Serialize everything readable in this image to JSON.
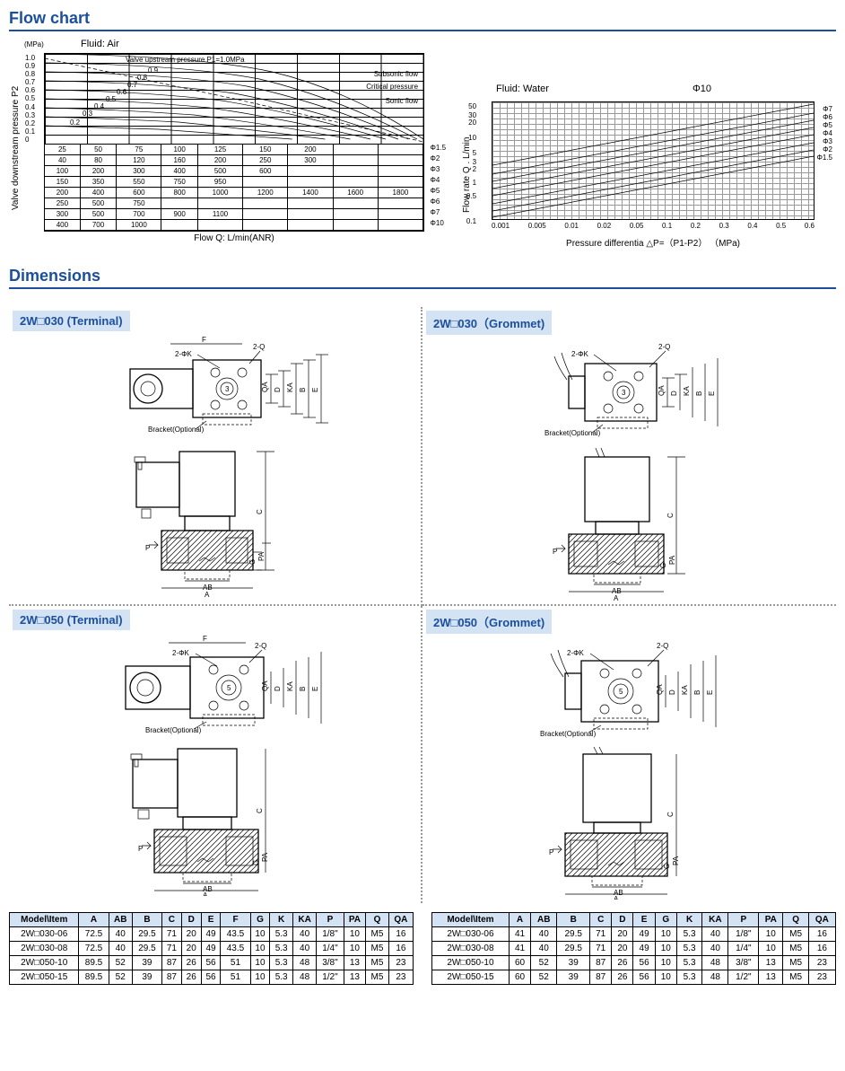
{
  "sections": {
    "flowchart": "Flow chart",
    "dimensions": "Dimensions"
  },
  "airChart": {
    "fluidLabel": "Fluid: Air",
    "ylabel": "Valve downstream pressure P2",
    "yunit": "(MPa)",
    "yticks": [
      "1.0",
      "0.9",
      "0.8",
      "0.7",
      "0.6",
      "0.5",
      "0.4",
      "0.3",
      "0.2",
      "0.1",
      "0"
    ],
    "curveLabels": {
      "header": "Valve upstream pressure P1=1.0MPa",
      "c1": "0.9",
      "c2": "0.8",
      "c3": "0.7",
      "c4": "0.6",
      "c5": "0.5",
      "c6": "0.4",
      "c7": "0.3",
      "c8": "0.2"
    },
    "annot": {
      "sub": "Subsonic flow",
      "crit": "Critical pressure",
      "sonic": "Sonic flow"
    },
    "xlabel": "Flow Q: L/min(ANR)",
    "phiLabels": [
      "Φ1.5",
      "Φ2",
      "Φ3",
      "Φ4",
      "Φ5",
      "Φ6",
      "Φ7",
      "Φ10"
    ],
    "rows": [
      [
        "25",
        "50",
        "75",
        "100",
        "125",
        "150",
        "200",
        "",
        ""
      ],
      [
        "40",
        "80",
        "120",
        "160",
        "200",
        "250",
        "300",
        "",
        ""
      ],
      [
        "100",
        "200",
        "300",
        "400",
        "500",
        "600",
        "",
        "",
        ""
      ],
      [
        "150",
        "350",
        "550",
        "750",
        "950",
        "",
        "",
        "",
        ""
      ],
      [
        "200",
        "400",
        "600",
        "800",
        "1000",
        "1200",
        "1400",
        "1600",
        "1800"
      ],
      [
        "250",
        "500",
        "750",
        "",
        "",
        "",
        "",
        "",
        ""
      ],
      [
        "300",
        "500",
        "700",
        "900",
        "1100",
        "",
        "",
        "",
        ""
      ],
      [
        "400",
        "700",
        "1000",
        "",
        "",
        "",
        "",
        "",
        ""
      ]
    ]
  },
  "waterChart": {
    "fluidLabel": "Fluid: Water",
    "topPhi": "Φ10",
    "ylabel": "Flow rate Q . L/min",
    "yticks": [
      {
        "v": "50",
        "p": 0
      },
      {
        "v": "30",
        "p": 10
      },
      {
        "v": "20",
        "p": 18
      },
      {
        "v": "10",
        "p": 35
      },
      {
        "v": "5",
        "p": 52
      },
      {
        "v": "3",
        "p": 62
      },
      {
        "v": "2",
        "p": 70
      },
      {
        "v": "1",
        "p": 85
      },
      {
        "v": "0.5",
        "p": 100
      },
      {
        "v": "0.1",
        "p": 128
      }
    ],
    "xticks": [
      "0.001",
      "0.005",
      "0.01",
      "0.02",
      "0.05",
      "0.1",
      "0.2",
      "0.3",
      "0.4",
      "0.5",
      "0.6"
    ],
    "xlabel": "Pressure differentia  △P=（P1-P2）   （MPa)",
    "phiLabels": [
      "Φ7",
      "Φ6",
      "Φ5",
      "Φ4",
      "Φ3",
      "Φ2",
      "Φ1.5"
    ]
  },
  "dimTitles": {
    "t030term": "2W□030 (Terminal)",
    "t030grom": "2W□030（Grommet)",
    "t050term": "2W□050 (Terminal)",
    "t050grom": "2W□050（Grommet)"
  },
  "dwgLabels": {
    "F": "F",
    "twoPhiK": "2-ΦK",
    "twoQ": "2-Q",
    "bracket": "Bracket(Optional)",
    "QA": "QA",
    "D": "D",
    "KA": "KA",
    "B": "B",
    "E": "E",
    "C": "C",
    "P": "P",
    "G": "G",
    "PA": "PA",
    "AB": "AB",
    "A": "A",
    "three": "3",
    "five": "5"
  },
  "tableLeft": {
    "headers": [
      "Model\\Item",
      "A",
      "AB",
      "B",
      "C",
      "D",
      "E",
      "F",
      "G",
      "K",
      "KA",
      "P",
      "PA",
      "Q",
      "QA"
    ],
    "rows": [
      [
        "2W□030-06",
        "72.5",
        "40",
        "29.5",
        "71",
        "20",
        "49",
        "43.5",
        "10",
        "5.3",
        "40",
        "1/8\"",
        "10",
        "M5",
        "16"
      ],
      [
        "2W□030-08",
        "72.5",
        "40",
        "29.5",
        "71",
        "20",
        "49",
        "43.5",
        "10",
        "5.3",
        "40",
        "1/4\"",
        "10",
        "M5",
        "16"
      ],
      [
        "2W□050-10",
        "89.5",
        "52",
        "39",
        "87",
        "26",
        "56",
        "51",
        "10",
        "5.3",
        "48",
        "3/8\"",
        "13",
        "M5",
        "23"
      ],
      [
        "2W□050-15",
        "89.5",
        "52",
        "39",
        "87",
        "26",
        "56",
        "51",
        "10",
        "5.3",
        "48",
        "1/2\"",
        "13",
        "M5",
        "23"
      ]
    ]
  },
  "tableRight": {
    "headers": [
      "Model\\Item",
      "A",
      "AB",
      "B",
      "C",
      "D",
      "E",
      "G",
      "K",
      "KA",
      "P",
      "PA",
      "Q",
      "QA"
    ],
    "rows": [
      [
        "2W□030-06",
        "41",
        "40",
        "29.5",
        "71",
        "20",
        "49",
        "10",
        "5.3",
        "40",
        "1/8\"",
        "10",
        "M5",
        "16"
      ],
      [
        "2W□030-08",
        "41",
        "40",
        "29.5",
        "71",
        "20",
        "49",
        "10",
        "5.3",
        "40",
        "1/4\"",
        "10",
        "M5",
        "16"
      ],
      [
        "2W□050-10",
        "60",
        "52",
        "39",
        "87",
        "26",
        "56",
        "10",
        "5.3",
        "48",
        "3/8\"",
        "13",
        "M5",
        "23"
      ],
      [
        "2W□050-15",
        "60",
        "52",
        "39",
        "87",
        "26",
        "56",
        "10",
        "5.3",
        "48",
        "1/2\"",
        "13",
        "M5",
        "23"
      ]
    ]
  }
}
